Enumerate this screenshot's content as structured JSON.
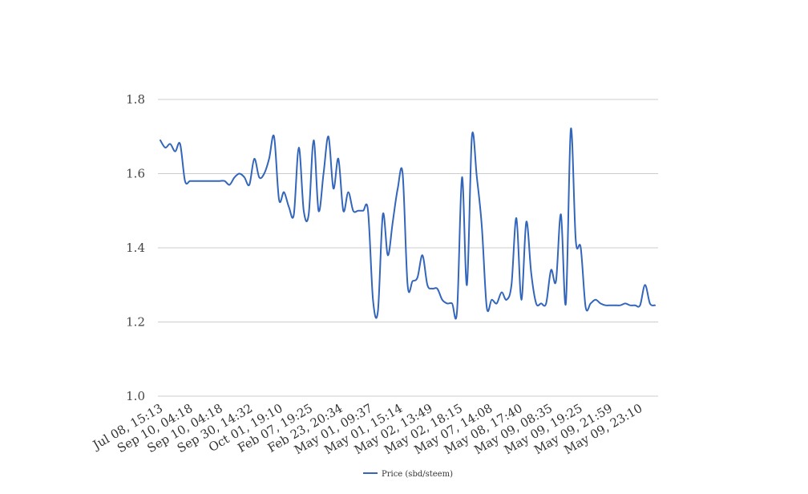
{
  "chart_data": {
    "type": "line",
    "title": "",
    "xlabel": "",
    "ylabel": "",
    "ylim": [
      1.0,
      1.8
    ],
    "yticks": [
      "1.0",
      "1.2",
      "1.4",
      "1.6",
      "1.8"
    ],
    "grid": true,
    "legend_position": "bottom",
    "line_color": "#3366bb",
    "x_tick_labels": [
      "Jul 08, 15:13",
      "Sep 10, 04:18",
      "Sep 10, 04:18",
      "Sep 30, 14:32",
      "Oct 01, 19:10",
      "Feb 07, 19:25",
      "Feb 23, 20:34",
      "May 01, 09:37",
      "May 01, 15:14",
      "May 02, 13:49",
      "May 02, 18:15",
      "May 07, 14:08",
      "May 08, 17:40",
      "May 09, 08:35",
      "May 09, 19:25",
      "May 09, 21:59",
      "May 09, 23:10"
    ],
    "series": [
      {
        "name": "Price (sbd/steem)",
        "values": [
          1.69,
          1.67,
          1.68,
          1.66,
          1.68,
          1.58,
          1.58,
          1.58,
          1.58,
          1.58,
          1.58,
          1.58,
          1.58,
          1.58,
          1.57,
          1.59,
          1.6,
          1.59,
          1.57,
          1.64,
          1.59,
          1.6,
          1.64,
          1.7,
          1.53,
          1.55,
          1.51,
          1.49,
          1.67,
          1.5,
          1.49,
          1.69,
          1.5,
          1.6,
          1.7,
          1.56,
          1.64,
          1.5,
          1.55,
          1.5,
          1.5,
          1.5,
          1.5,
          1.26,
          1.23,
          1.49,
          1.38,
          1.47,
          1.56,
          1.6,
          1.3,
          1.31,
          1.32,
          1.38,
          1.3,
          1.29,
          1.29,
          1.26,
          1.25,
          1.25,
          1.23,
          1.59,
          1.3,
          1.7,
          1.59,
          1.46,
          1.24,
          1.26,
          1.25,
          1.28,
          1.26,
          1.3,
          1.48,
          1.26,
          1.47,
          1.33,
          1.25,
          1.25,
          1.25,
          1.34,
          1.31,
          1.49,
          1.25,
          1.72,
          1.42,
          1.4,
          1.24,
          1.25,
          1.26,
          1.25,
          1.245,
          1.245,
          1.245,
          1.245,
          1.25,
          1.245,
          1.245,
          1.245,
          1.3,
          1.25,
          1.245
        ]
      }
    ]
  }
}
